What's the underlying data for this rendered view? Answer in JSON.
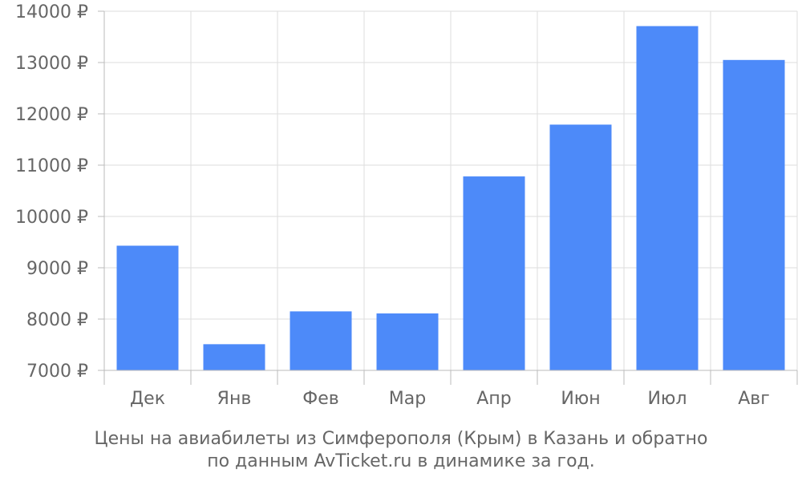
{
  "chart_data": {
    "type": "bar",
    "categories": [
      "Дек",
      "Янв",
      "Фев",
      "Мар",
      "Апр",
      "Июн",
      "Июл",
      "Авг"
    ],
    "values": [
      9430,
      7510,
      8150,
      8110,
      10780,
      11790,
      13710,
      13050
    ],
    "y_ticks": [
      7000,
      8000,
      9000,
      10000,
      11000,
      12000,
      13000,
      14000
    ],
    "y_unit": "₽",
    "ylim": [
      7000,
      14000
    ],
    "grid": true,
    "legend": "none",
    "xlabel": "",
    "ylabel": "",
    "caption": [
      "Цены на авиабилеты из Симферополя (Крым) в Казань и обратно",
      "по данным AvTicket.ru в динамике за год."
    ]
  },
  "colors": {
    "bar": "#4d8af9",
    "grid": "#dddddd",
    "axis": "#bbbbbb",
    "text": "#666666"
  }
}
